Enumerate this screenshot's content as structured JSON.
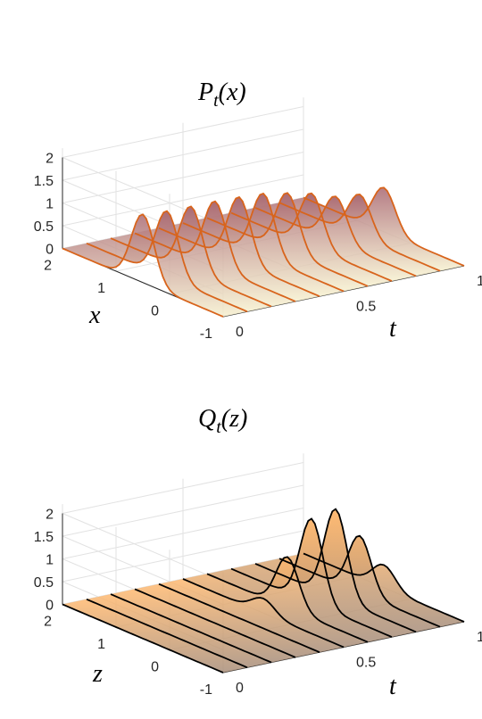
{
  "chart_data": [
    {
      "type": "surface3d",
      "title": "P_t(x)",
      "title_main": "P",
      "title_sub": "t",
      "title_arg": "(x)",
      "xlabel": "t",
      "ylabel": "x",
      "zlabel": "",
      "t_ticks": [
        "0",
        "0.5",
        "1"
      ],
      "x_ticks": [
        "2",
        "1",
        "0",
        "-1"
      ],
      "z_ticks": [
        "0",
        "0.5",
        "1",
        "1.5",
        "2"
      ],
      "t_range": [
        0,
        1
      ],
      "x_range": [
        -1,
        2
      ],
      "z_range": [
        0,
        2
      ],
      "grid": true,
      "curve_color": "#d8641c",
      "surface_color_low": "#f6f0cf",
      "surface_color_high": "#a86670",
      "slices_t": [
        0,
        0.1,
        0.2,
        0.3,
        0.4,
        0.5,
        0.6,
        0.7,
        0.8,
        0.9,
        1.0
      ],
      "series": [
        {
          "t": 0.0,
          "amplitude": 1.5,
          "center": 0.5,
          "width": 0.3
        },
        {
          "t": 0.1,
          "amplitude": 1.46,
          "center": 0.5,
          "width": 0.3
        },
        {
          "t": 0.2,
          "amplitude": 1.45,
          "center": 0.5,
          "width": 0.3
        },
        {
          "t": 0.3,
          "amplitude": 1.45,
          "center": 0.5,
          "width": 0.3
        },
        {
          "t": 0.4,
          "amplitude": 1.43,
          "center": 0.5,
          "width": 0.3
        },
        {
          "t": 0.5,
          "amplitude": 1.4,
          "center": 0.5,
          "width": 0.3
        },
        {
          "t": 0.6,
          "amplitude": 1.3,
          "center": 0.5,
          "width": 0.3
        },
        {
          "t": 0.7,
          "amplitude": 1.18,
          "center": 0.5,
          "width": 0.3
        },
        {
          "t": 0.8,
          "amplitude": 1.0,
          "center": 0.5,
          "width": 0.3
        },
        {
          "t": 0.9,
          "amplitude": 0.93,
          "center": 0.5,
          "width": 0.3
        },
        {
          "t": 1.0,
          "amplitude": 0.97,
          "center": 0.5,
          "width": 0.3
        }
      ]
    },
    {
      "type": "surface3d",
      "title": "Q_t(z)",
      "title_main": "Q",
      "title_sub": "t",
      "title_arg": "(z)",
      "xlabel": "t",
      "ylabel": "z",
      "zlabel": "",
      "t_ticks": [
        "0",
        "0.5",
        "1"
      ],
      "x_ticks": [
        "2",
        "1",
        "0",
        "-1"
      ],
      "z_ticks": [
        "0",
        "0.5",
        "1",
        "1.5",
        "2"
      ],
      "t_range": [
        0,
        1
      ],
      "x_range": [
        -1,
        2
      ],
      "z_range": [
        0,
        2
      ],
      "grid": true,
      "curve_color": "#000000",
      "surface_color_low": "#a88e7a",
      "surface_color_high": "#ffb970",
      "slices_t": [
        0,
        0.1,
        0.2,
        0.3,
        0.4,
        0.5,
        0.6,
        0.7,
        0.8,
        0.9,
        1.0
      ],
      "series": [
        {
          "t": 0.0,
          "amplitude": 0.0,
          "center": 0.5,
          "width": 0.3
        },
        {
          "t": 0.1,
          "amplitude": 0.0,
          "center": 0.5,
          "width": 0.3
        },
        {
          "t": 0.2,
          "amplitude": 0.0,
          "center": 0.5,
          "width": 0.3
        },
        {
          "t": 0.3,
          "amplitude": 0.0,
          "center": 0.5,
          "width": 0.3
        },
        {
          "t": 0.4,
          "amplitude": 0.0,
          "center": 0.5,
          "width": 0.3
        },
        {
          "t": 0.5,
          "amplitude": 0.32,
          "center": 0.5,
          "width": 0.3
        },
        {
          "t": 0.6,
          "amplitude": 1.12,
          "center": 0.5,
          "width": 0.3
        },
        {
          "t": 0.7,
          "amplitude": 1.85,
          "center": 0.5,
          "width": 0.3
        },
        {
          "t": 0.8,
          "amplitude": 1.95,
          "center": 0.5,
          "width": 0.3
        },
        {
          "t": 0.9,
          "amplitude": 1.25,
          "center": 0.5,
          "width": 0.3
        },
        {
          "t": 1.0,
          "amplitude": 0.5,
          "center": 0.5,
          "width": 0.3
        }
      ]
    }
  ]
}
